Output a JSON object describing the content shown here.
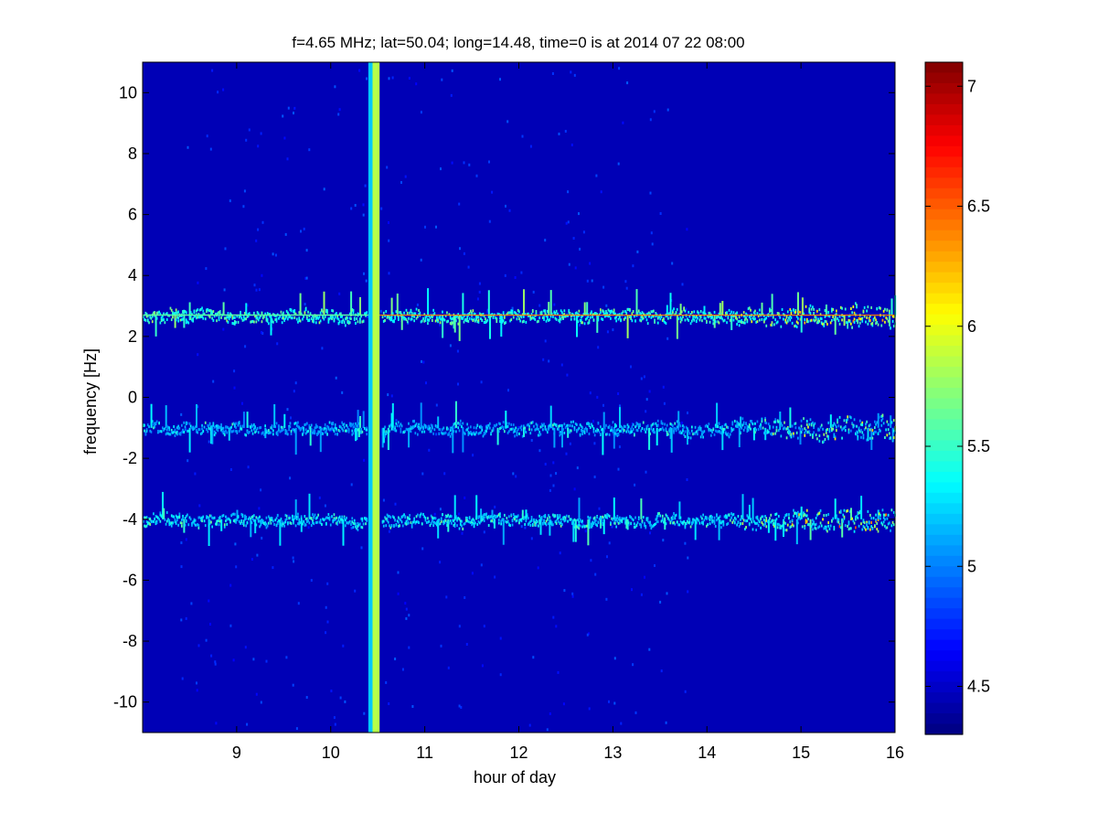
{
  "chart_data": {
    "type": "heatmap",
    "title": "f=4.65 MHz;  lat=50.04; long=14.48, time=0 is at 2014 07 22 08:00",
    "xlabel": "hour of day",
    "ylabel": "frequency [Hz]",
    "xlim": [
      8.0,
      16.0
    ],
    "ylim": [
      -11.0,
      11.0
    ],
    "xticks": [
      9,
      10,
      11,
      12,
      13,
      14,
      15,
      16
    ],
    "yticks": [
      10,
      8,
      6,
      4,
      2,
      0,
      -2,
      -4,
      -6,
      -8,
      -10
    ],
    "colorbar": {
      "limits": [
        4.3,
        7.1
      ],
      "ticks": [
        7,
        6.5,
        6,
        5.5,
        5,
        4.5
      ],
      "colormap": "jet"
    },
    "background_level": 4.45,
    "bands": [
      {
        "name": "",
        "center_hz": 2.7,
        "from_hour": 8.0,
        "to_hour": 16.0,
        "typical_level": 5.3,
        "max_level": 7.0
      },
      {
        "name": "",
        "center_hz": -1.0,
        "from_hour": 8.0,
        "to_hour": 16.0,
        "typical_level": 5.0,
        "max_level": 6.8
      },
      {
        "name": "",
        "center_hz": -4.0,
        "from_hour": 8.0,
        "to_hour": 16.0,
        "typical_level": 5.1,
        "max_level": 7.0
      }
    ],
    "gap": {
      "from_hour": 10.4,
      "to_hour": 10.52,
      "level_left": 5.2,
      "level_right": 5.85
    }
  }
}
